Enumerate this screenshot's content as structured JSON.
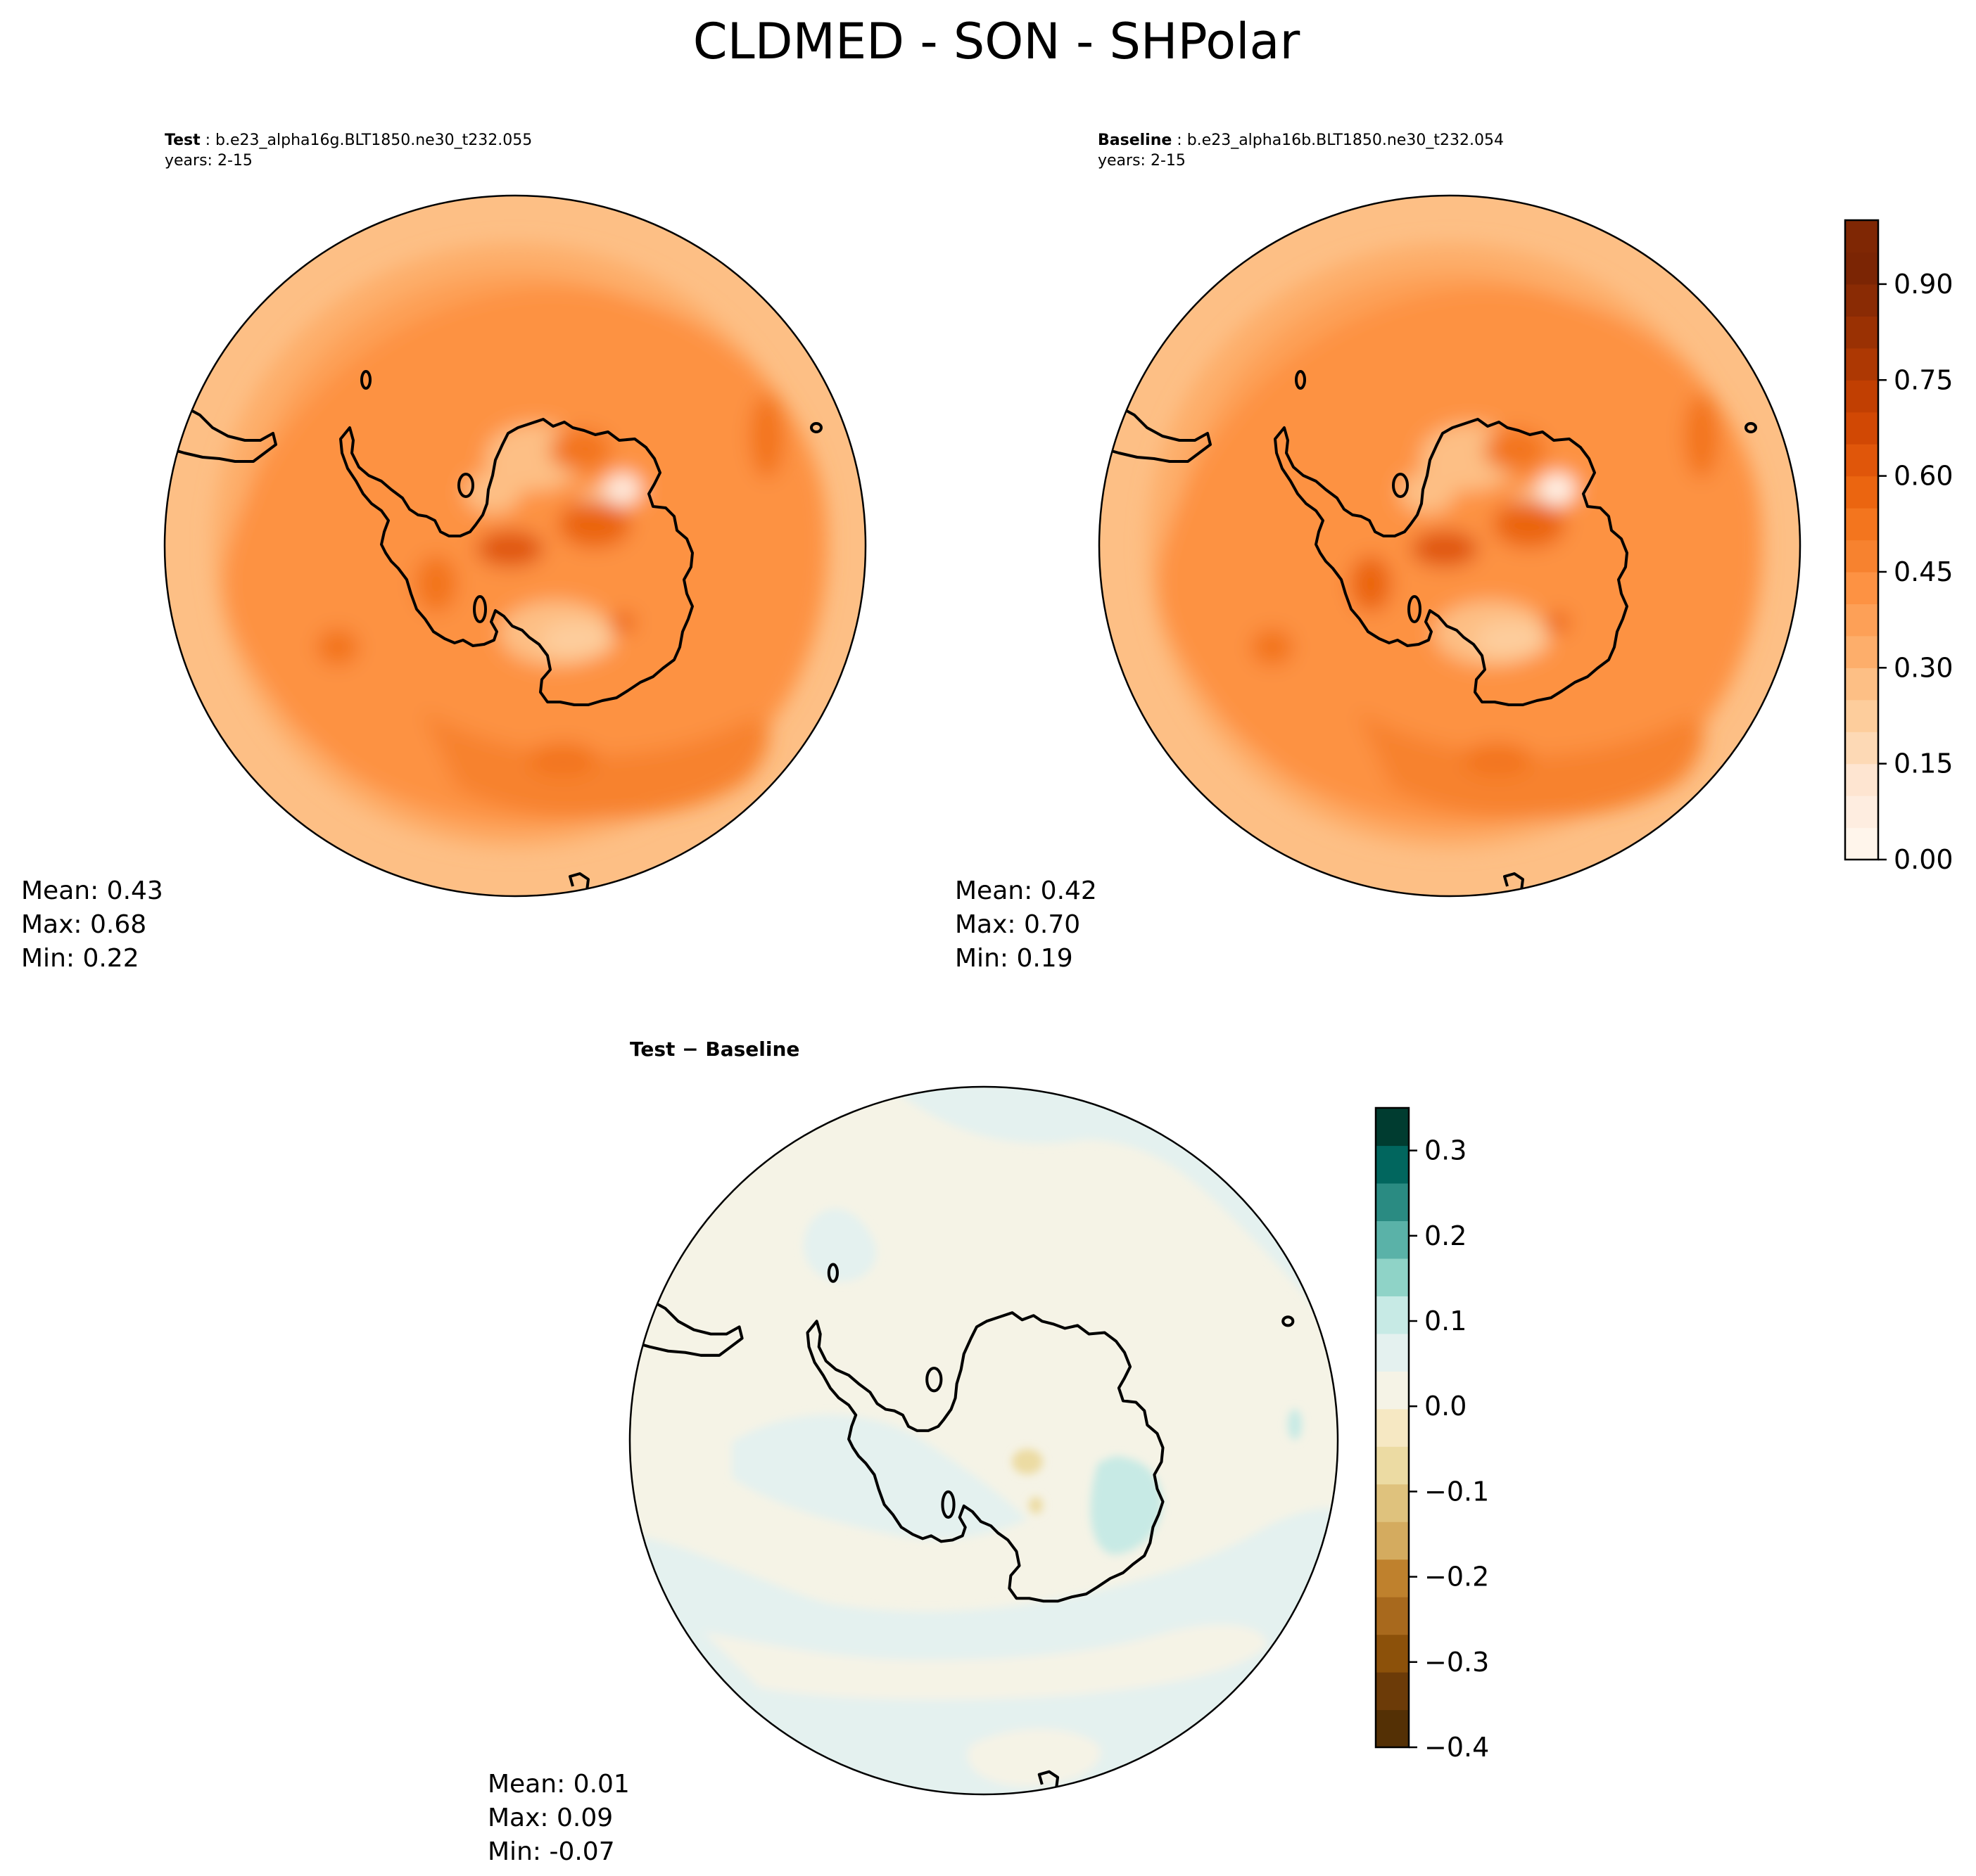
{
  "figure": {
    "title": "CLDMED - SON - SHPolar"
  },
  "panels": [
    {
      "id": "test",
      "label": "Test",
      "case": "b.e23_alpha16g.BLT1850.ne30_t232.055",
      "years": "years: 2-15",
      "stats": {
        "mean": "Mean:  0.43",
        "max": "Max:  0.68",
        "min": "Min:  0.22"
      }
    },
    {
      "id": "baseline",
      "label": "Baseline",
      "case": "b.e23_alpha16b.BLT1850.ne30_t232.054",
      "years": "years: 2-15",
      "stats": {
        "mean": "Mean:  0.42",
        "max": "Max:  0.70",
        "min": "Min:  0.19"
      }
    },
    {
      "id": "diff",
      "label": "Test − Baseline",
      "stats": {
        "mean": "Mean:  0.01",
        "max": "Max:  0.09",
        "min": "Min: -0.07"
      }
    }
  ],
  "colorbars": {
    "main": {
      "colormap": "Oranges",
      "range": [
        0.0,
        1.0
      ],
      "levels": 20,
      "ticks": [
        "0.00",
        "0.15",
        "0.30",
        "0.45",
        "0.60",
        "0.75",
        "0.90"
      ],
      "colors": [
        "#fff5eb",
        "#feede0",
        "#fee5d1",
        "#fdd9b5",
        "#fdcd9c",
        "#fdbf85",
        "#fdae6b",
        "#fda057",
        "#fd9243",
        "#f7822f",
        "#f3751e",
        "#eb6510",
        "#e0560a",
        "#d14804",
        "#c13f02",
        "#ad3803",
        "#9a3103",
        "#8a2b04",
        "#7b2504",
        "#7f2704"
      ]
    },
    "diff": {
      "colormap": "BrBG",
      "range": [
        -0.4,
        0.35
      ],
      "ticks": [
        "−0.4",
        "−0.3",
        "−0.2",
        "−0.1",
        "0.0",
        "0.1",
        "0.2",
        "0.3"
      ],
      "colors": [
        "#543005",
        "#6c3b08",
        "#8c510a",
        "#a8691d",
        "#bf812d",
        "#d4ab5f",
        "#dfc27d",
        "#ecdba3",
        "#f6e8c3",
        "#f5f3e6",
        "#e4f1ef",
        "#c7eae5",
        "#8fd3c7",
        "#5ab2a8",
        "#2a8b82",
        "#01665e",
        "#003c30"
      ]
    }
  }
}
